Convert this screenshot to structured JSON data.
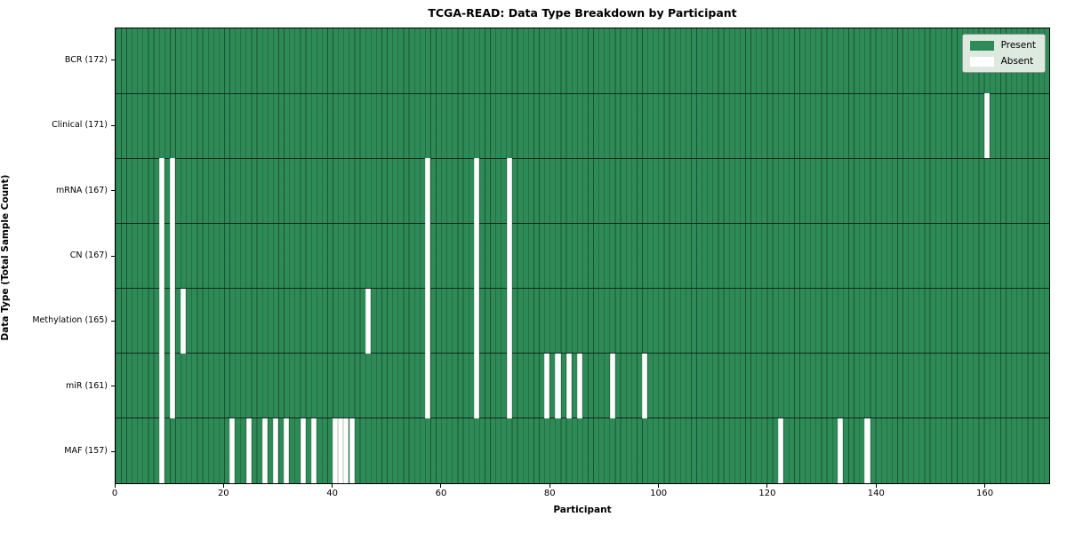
{
  "chart_data": {
    "type": "heatmap",
    "title": "TCGA-READ: Data Type Breakdown by Participant",
    "xlabel": "Participant",
    "ylabel": "Data Type (Total Sample Count)",
    "n_participants": 172,
    "x_ticks": [
      0,
      20,
      40,
      60,
      80,
      100,
      120,
      140,
      160
    ],
    "legend_position": "upper right",
    "grid": true,
    "colors": {
      "present": "#2e8b57",
      "absent": "#ffffff"
    },
    "legend": [
      {
        "label": "Present",
        "color": "#2e8b57"
      },
      {
        "label": "Absent",
        "color": "#ffffff"
      }
    ],
    "rows": [
      {
        "name": "BCR",
        "label": "BCR (172)",
        "total": 172,
        "absent_participants": []
      },
      {
        "name": "Clinical",
        "label": "Clinical (171)",
        "total": 171,
        "absent_participants": [
          160
        ]
      },
      {
        "name": "mRNA",
        "label": "mRNA (167)",
        "total": 167,
        "absent_participants": [
          8,
          10,
          57,
          66,
          72
        ]
      },
      {
        "name": "CN",
        "label": "CN (167)",
        "total": 167,
        "absent_participants": [
          8,
          10,
          57,
          66,
          72
        ]
      },
      {
        "name": "Methylation",
        "label": "Methylation (165)",
        "total": 165,
        "absent_participants": [
          8,
          10,
          12,
          46,
          57,
          66,
          72
        ]
      },
      {
        "name": "miR",
        "label": "miR (161)",
        "total": 161,
        "absent_participants": [
          8,
          10,
          57,
          66,
          72,
          79,
          81,
          83,
          85,
          91,
          97
        ]
      },
      {
        "name": "MAF",
        "label": "MAF (157)",
        "total": 157,
        "absent_participants": [
          8,
          21,
          24,
          27,
          29,
          31,
          34,
          36,
          40,
          41,
          42,
          43,
          122,
          133,
          138
        ]
      }
    ]
  }
}
